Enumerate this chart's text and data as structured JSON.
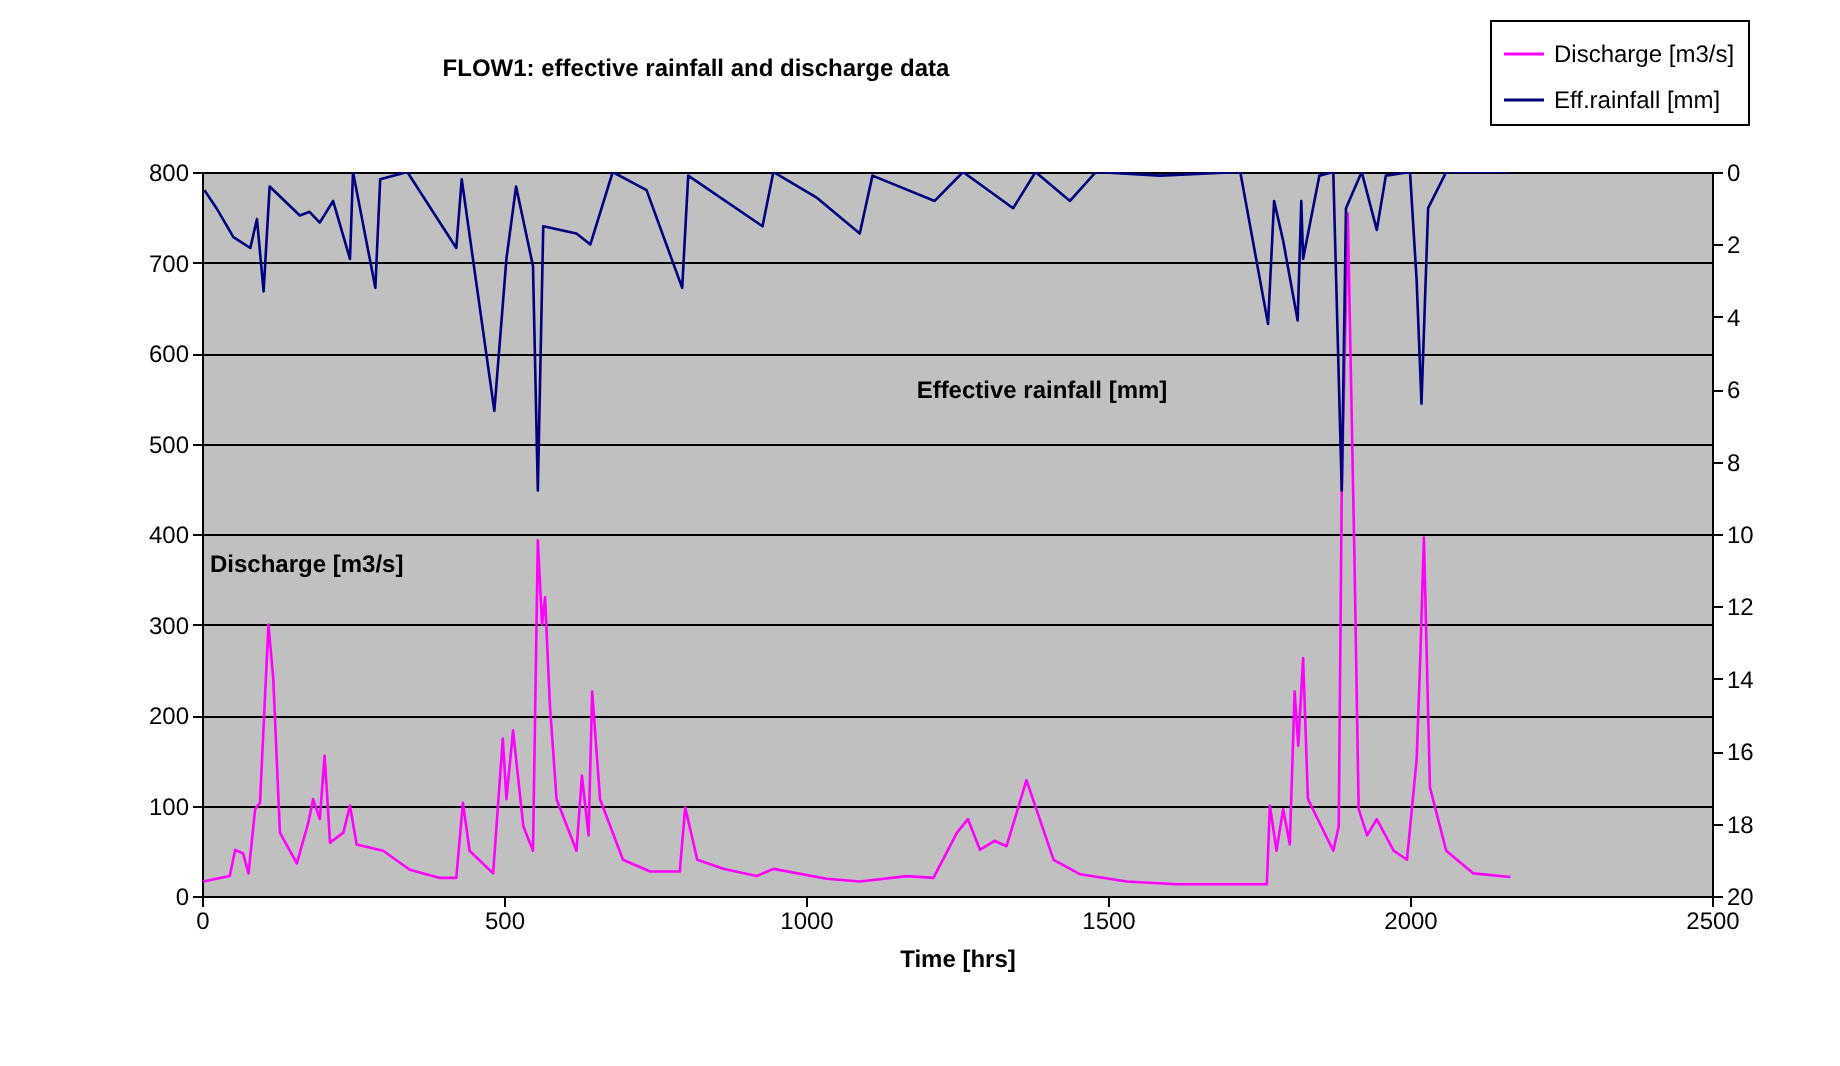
{
  "chart_data": {
    "type": "line",
    "title": "FLOW1: effective rainfall and discharge data",
    "xlabel": "Time [hrs]",
    "annotations": [
      "Discharge [m3/s]",
      "Effective rainfall [mm]"
    ],
    "series": [
      {
        "name": "Discharge [m3/s]",
        "color": "#ff00ff",
        "x": [
          2,
          46,
          55,
          68,
          77,
          88,
          96,
          110,
          118,
          129,
          157,
          176,
          184,
          195,
          203,
          212,
          234,
          245,
          256,
          300,
          344,
          394,
          421,
          432,
          443,
          482,
          498,
          504,
          515,
          532,
          548,
          556,
          563,
          568,
          576,
          587,
          620,
          629,
          640,
          646,
          659,
          697,
          742,
          791,
          800,
          820,
          863,
          918,
          946,
          1034,
          1089,
          1167,
          1211,
          1250,
          1268,
          1288,
          1312,
          1332,
          1365,
          1410,
          1454,
          1531,
          1614,
          1763,
          1768,
          1779,
          1790,
          1801,
          1809,
          1815,
          1823,
          1831,
          1873,
          1882,
          1887,
          1897,
          1908,
          1915,
          1929,
          1945,
          1973,
          1995,
          2011,
          2017,
          2023,
          2033,
          2060,
          2105,
          2166
        ],
        "values": [
          16,
          22,
          51,
          47,
          25,
          96,
          103,
          300,
          240,
          70,
          36,
          81,
          107,
          85,
          155,
          59,
          70,
          100,
          57,
          50,
          29,
          20,
          20,
          103,
          50,
          25,
          174,
          107,
          183,
          77,
          50,
          393,
          300,
          330,
          211,
          107,
          50,
          133,
          67,
          226,
          107,
          40,
          27,
          27,
          98,
          40,
          30,
          22,
          30,
          19,
          16,
          22,
          20,
          70,
          85,
          51,
          61,
          55,
          128,
          40,
          24,
          16,
          13,
          13,
          100,
          50,
          96,
          57,
          226,
          166,
          263,
          107,
          50,
          77,
          448,
          754,
          374,
          96,
          67,
          85,
          50,
          40,
          151,
          263,
          396,
          120,
          50,
          25,
          21
        ]
      },
      {
        "name": "Eff.rainfall [mm]",
        "color": "#000080",
        "axis": "y2",
        "x": [
          4,
          24,
          52,
          80,
          91,
          102,
          112,
          162,
          178,
          195,
          217,
          245,
          250,
          287,
          295,
          340,
          421,
          430,
          484,
          504,
          520,
          548,
          556,
          565,
          620,
          643,
          680,
          736,
          795,
          805,
          928,
          946,
          1017,
          1089,
          1110,
          1213,
          1260,
          1343,
          1380,
          1437,
          1480,
          1586,
          1719,
          1765,
          1775,
          1790,
          1814,
          1820,
          1823,
          1850,
          1873,
          1887,
          1894,
          1920,
          1945,
          1960,
          2000,
          2011,
          2019,
          2030,
          2060,
          2166
        ],
        "values": [
          0.5,
          1.0,
          1.8,
          2.1,
          1.3,
          3.3,
          0.4,
          1.2,
          1.1,
          1.4,
          0.8,
          2.4,
          0,
          3.2,
          0.2,
          0,
          2.1,
          0.2,
          6.6,
          2.4,
          0.4,
          2.6,
          8.8,
          1.5,
          1.7,
          2.0,
          0,
          0.5,
          3.2,
          0.1,
          1.5,
          0,
          0.7,
          1.7,
          0.1,
          0.8,
          0,
          1.0,
          0,
          0.8,
          0,
          0.1,
          0,
          4.2,
          0.8,
          1.9,
          4.1,
          0.8,
          2.4,
          0.1,
          0,
          8.8,
          1.0,
          0,
          1.6,
          0.1,
          0,
          3.0,
          6.4,
          1.0,
          0,
          0
        ]
      }
    ],
    "xlim": [
      0,
      2500
    ],
    "xticks": [
      0,
      500,
      1000,
      1500,
      2000,
      2500
    ],
    "ylim": [
      0,
      800
    ],
    "yticks": [
      0,
      100,
      200,
      300,
      400,
      500,
      600,
      700,
      800
    ],
    "y2lim": [
      20,
      0
    ],
    "y2ticks": [
      0,
      2,
      4,
      6,
      8,
      10,
      12,
      14,
      16,
      18,
      20
    ],
    "grid": "y",
    "legend": "top right"
  }
}
